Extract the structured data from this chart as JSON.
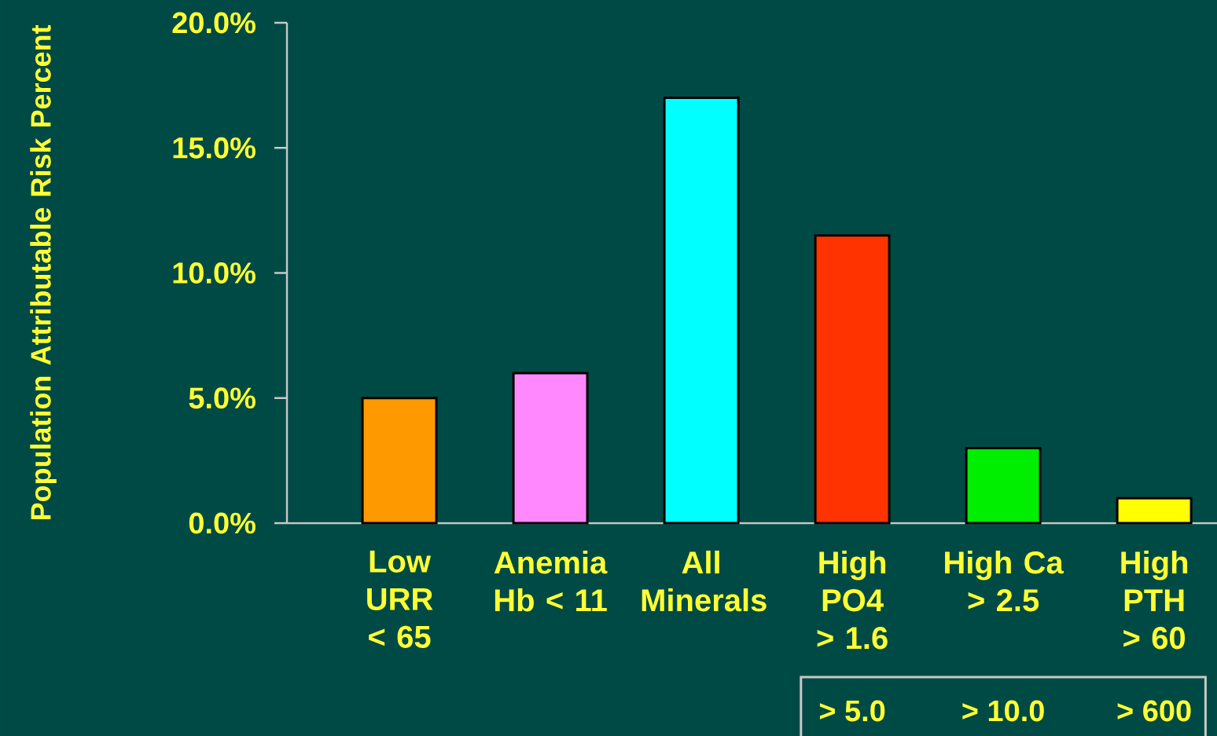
{
  "chart_data": {
    "type": "bar",
    "ylabel": "Population Attributable Risk Percent",
    "categories": [
      "Low URR < 65",
      "Anemia Hb < 11",
      "All Minerals",
      "High PO4 > 1.6",
      "High Ca > 2.5",
      "High PTH > 60"
    ],
    "values": [
      5.0,
      6.0,
      17.0,
      11.5,
      3.0,
      1.0
    ],
    "colors": [
      "#ff9900",
      "#ff88ff",
      "#00ffff",
      "#ff3300",
      "#00ee00",
      "#ffff00"
    ],
    "ylim": [
      0,
      20
    ],
    "yticks": [
      {
        "value": 0,
        "label": "0.0%"
      },
      {
        "value": 5,
        "label": "5.0%"
      },
      {
        "value": 10,
        "label": "10.0%"
      },
      {
        "value": 15,
        "label": "15.0%"
      },
      {
        "value": 20,
        "label": "20.0%"
      }
    ],
    "annotations": [
      "> 5.0",
      "> 10.0",
      "> 600"
    ]
  }
}
